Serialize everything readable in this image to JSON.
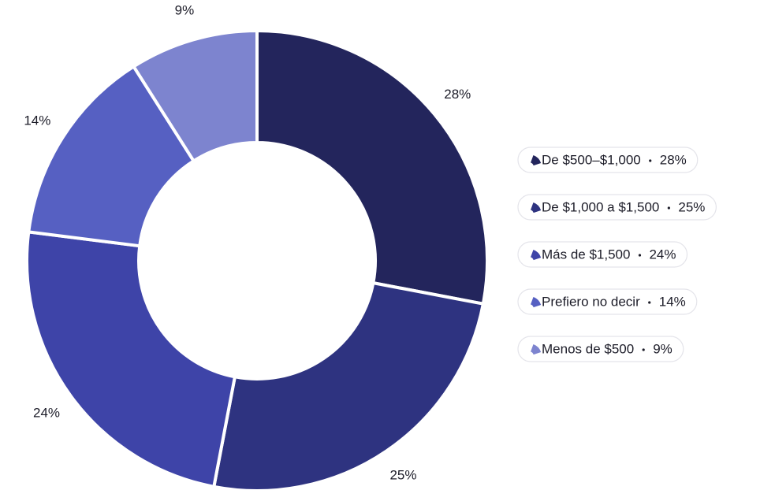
{
  "chart_data": {
    "type": "donut",
    "categories": [
      "De $500–$1,000",
      "De $1,000 a $1,500",
      "Más de $1,500",
      "Prefiero no decir",
      "Menos de $500"
    ],
    "values": [
      28,
      25,
      24,
      14,
      9
    ],
    "value_labels": [
      "28%",
      "25%",
      "24%",
      "14%",
      "9%"
    ],
    "colors": [
      "#23255c",
      "#2e3380",
      "#3e44a8",
      "#5660c2",
      "#7d84cf"
    ],
    "legend": "right"
  }
}
